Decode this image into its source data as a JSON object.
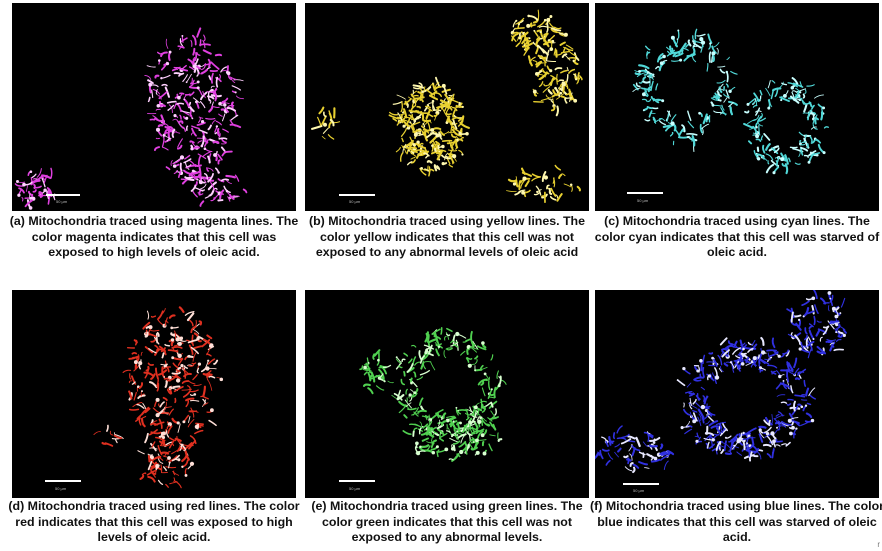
{
  "panels": [
    {
      "id": "a",
      "caption": "(a) Mitochondria traced using magenta lines. The color magenta indicates that this cell was exposed to high levels of oleic acid.",
      "trace_color": "#e040e0",
      "highlight_color": "#ffd0ff",
      "scale_label": "50 µm"
    },
    {
      "id": "b",
      "caption": "(b) Mitochondria traced using yellow lines. The color yellow indicates that this cell was not exposed to any abnormal levels of oleic acid",
      "trace_color": "#e8d030",
      "highlight_color": "#fff8b0",
      "scale_label": "50 µm"
    },
    {
      "id": "c",
      "caption": "(c) Mitochondria traced using cyan lines. The color cyan indicates that this cell was starved of oleic acid.",
      "trace_color": "#50d8d8",
      "highlight_color": "#c8ffff",
      "scale_label": "50 µm"
    },
    {
      "id": "d",
      "caption": "(d) Mitochondria traced using red lines. The color red indicates that this cell was exposed to high levels of oleic acid.",
      "trace_color": "#e03020",
      "highlight_color": "#ffe0d8",
      "scale_label": "50 µm"
    },
    {
      "id": "e",
      "caption": "(e) Mitochondria traced using green lines. The color green indicates that this cell was not exposed to any abnormal levels.",
      "trace_color": "#50d050",
      "highlight_color": "#d8ffd0",
      "scale_label": "50 µm"
    },
    {
      "id": "f",
      "caption": "(f) Mitochondria traced using blue lines. The color blue indicates that this cell was starved of oleic acid.",
      "trace_color": "#3030e0",
      "highlight_color": "#e8e8ff",
      "scale_label": "50 µm"
    }
  ]
}
